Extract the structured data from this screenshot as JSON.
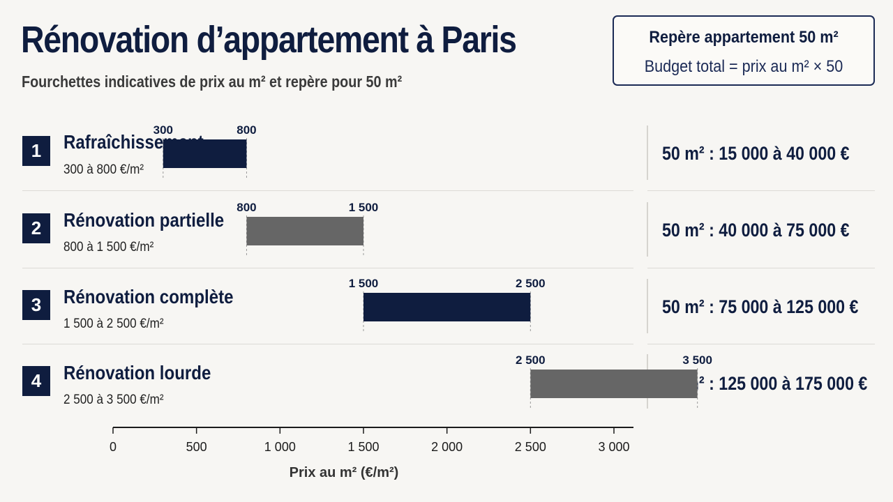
{
  "title": "Rénovation d’appartement à Paris",
  "subtitle": "Fourchettes indicatives de prix au m² et repère pour 50 m²",
  "note": {
    "title": "Repère appartement 50 m²",
    "text": "Budget total = prix au m² × 50"
  },
  "rows": [
    {
      "number": "1",
      "name": "Rafraîchissement",
      "range_text": "300 à 800 €/m²",
      "total_text": "50 m² : 15 000 à 40 000 €"
    },
    {
      "number": "2",
      "name": "Rénovation partielle",
      "range_text": "800 à 1 500 €/m²",
      "total_text": "50 m² : 40 000 à 75 000 €"
    },
    {
      "number": "3",
      "name": "Rénovation complète",
      "range_text": "1 500 à 2 500 €/m²",
      "total_text": "50 m² : 75 000 à 125 000 €"
    },
    {
      "number": "4",
      "name": "Rénovation lourde",
      "range_text": "2 500 à 3 500 €/m²",
      "total_text": "50 m² : 125 000 à 175 000 €"
    }
  ],
  "chart_data": {
    "type": "bar",
    "orientation": "horizontal-range",
    "categories": [
      "Rafraîchissement",
      "Rénovation partielle",
      "Rénovation complète",
      "Rénovation lourde"
    ],
    "ranges": [
      {
        "low": 300,
        "high": 800,
        "low_label": "300",
        "high_label": "800",
        "color": "#0f1d3f"
      },
      {
        "low": 800,
        "high": 1500,
        "low_label": "800",
        "high_label": "1 500",
        "color": "#666666"
      },
      {
        "low": 1500,
        "high": 2500,
        "low_label": "1 500",
        "high_label": "2 500",
        "color": "#0f1d3f"
      },
      {
        "low": 2500,
        "high": 3500,
        "low_label": "2 500",
        "high_label": "3 500",
        "color": "#666666"
      }
    ],
    "xlabel": "Prix au m² (€/m²)",
    "xlim": [
      0,
      3300
    ],
    "xticks": [
      0,
      500,
      1000,
      1500,
      2000,
      2500,
      3000
    ],
    "xtick_labels": [
      "0",
      "500",
      "1 000",
      "1 500",
      "2 000",
      "2 500",
      "3 000"
    ],
    "grid": false
  }
}
